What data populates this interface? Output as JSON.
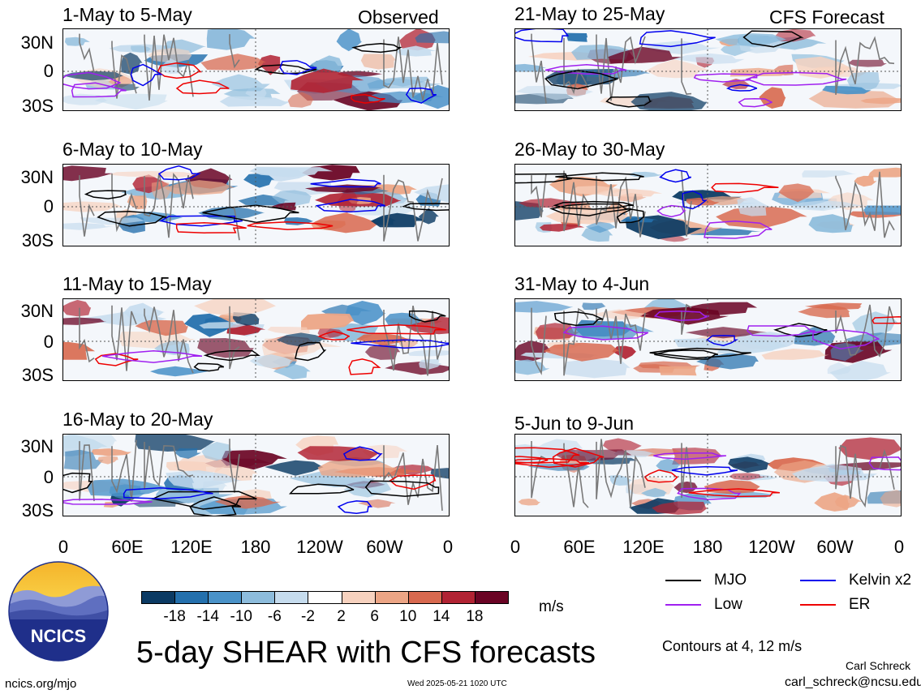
{
  "panels": [
    {
      "title": "1-May to 5-May",
      "corner": "Observed"
    },
    {
      "title": "6-May to 10-May",
      "corner": ""
    },
    {
      "title": "11-May to 15-May",
      "corner": ""
    },
    {
      "title": "16-May to 20-May",
      "corner": ""
    },
    {
      "title": "21-May to 25-May",
      "corner": "CFS Forecast"
    },
    {
      "title": "26-May to 30-May",
      "corner": ""
    },
    {
      "title": "31-May to 4-Jun",
      "corner": ""
    },
    {
      "title": "5-Jun to 9-Jun",
      "corner": ""
    }
  ],
  "y_labels": [
    "30N",
    "0",
    "30S"
  ],
  "x_labels": [
    "0",
    "60E",
    "120E",
    "180",
    "120W",
    "60W",
    "0"
  ],
  "colorbar": {
    "labels": [
      "-18",
      "-14",
      "-10",
      "-6",
      "-2",
      "2",
      "6",
      "10",
      "14",
      "18"
    ],
    "colors": [
      "#0b3a63",
      "#2470ad",
      "#4a92c8",
      "#8dbcdc",
      "#c6dcee",
      "#ffffff",
      "#f7d2bf",
      "#eca585",
      "#d8694f",
      "#b12333",
      "#6a0424"
    ],
    "unit": "m/s"
  },
  "legend": {
    "items": [
      {
        "label": "MJO",
        "color": "#000000"
      },
      {
        "label": "Kelvin x2",
        "color": "#0000ee"
      },
      {
        "label": "Low",
        "color": "#a020f0"
      },
      {
        "label": "ER",
        "color": "#ee0000"
      }
    ],
    "contours_note": "Contours at 4, 12 m/s"
  },
  "logo": {
    "text": "NCICS"
  },
  "main_title": "5-day SHEAR with CFS forecasts",
  "footer": {
    "url": "ncics.org/mjo",
    "timestamp": "Wed 2025-05-21 1020 UTC",
    "author": "Carl Schreck",
    "email": "carl_schreck@ncsu.edu"
  }
}
